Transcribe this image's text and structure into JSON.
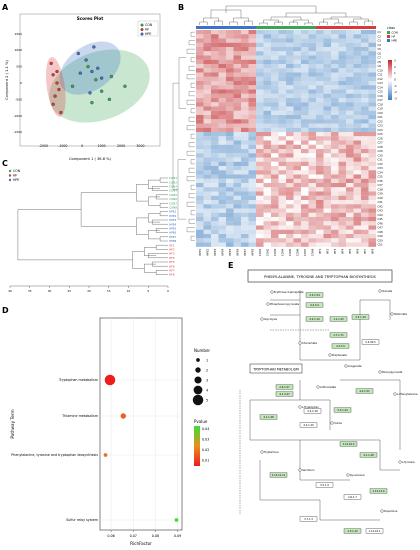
{
  "panels": {
    "a": {
      "letter": "A",
      "title": "Scores Plot",
      "xlabel": "Component 1 ( 36.8 %)",
      "ylabel": "Component 2 ( 1.1 %)",
      "legend": [
        "CON",
        "HF",
        "HPE"
      ],
      "colors": {
        "CON": "#3aa655",
        "HF": "#d83a3a",
        "HPE": "#3d73c6"
      },
      "xticks": [
        "-2000",
        "-1000",
        "0",
        "1000",
        "2000",
        "3000"
      ],
      "yticks": [
        "1500",
        "1000",
        "500",
        "0",
        "-500",
        "-1000",
        "-1500"
      ]
    },
    "b": {
      "letter": "B",
      "legend_title": "class",
      "legend": [
        "CON",
        "HF",
        "HPE"
      ],
      "scale_ticks": [
        "3",
        "2",
        "1",
        "0",
        "-1",
        "-2",
        "-3"
      ],
      "row_labels": [
        "C1",
        "C2",
        "C3",
        "C4",
        "C5",
        "C6",
        "C7",
        "C8",
        "C9",
        "C10",
        "C11",
        "C12",
        "C13",
        "C14",
        "C15",
        "C16",
        "C17",
        "C18",
        "C19",
        "C20",
        "C21",
        "C22",
        "C23",
        "C24",
        "C25",
        "C26",
        "C27",
        "C28",
        "C29",
        "C30",
        "C31",
        "C32",
        "C33",
        "C34",
        "C35",
        "C36",
        "C37",
        "C38",
        "C39",
        "C40",
        "C41",
        "C42",
        "C43",
        "C44",
        "C45",
        "C46",
        "C47",
        "C48",
        "C49",
        "C50",
        "C51"
      ],
      "col_labels": [
        "HPE1",
        "HPE2",
        "HPE3",
        "HPE4",
        "HPE5",
        "HPE6",
        "HPE7",
        "HPE8",
        "CON1",
        "CON2",
        "CON3",
        "CON4",
        "CON5",
        "CON6",
        "CON7",
        "CON8",
        "HF1",
        "HF2",
        "HF3",
        "HF4",
        "HF5",
        "HF6",
        "HF7",
        "HF8"
      ]
    },
    "c": {
      "letter": "C",
      "legend": [
        "CON",
        "HF",
        "HPE"
      ],
      "leaves_con": [
        "CON1",
        "CON2",
        "CON3",
        "CON4",
        "CON5",
        "CON6",
        "CON7",
        "CON8"
      ],
      "leaves_hpe": [
        "HPE1",
        "HPE2",
        "HPE3",
        "HPE4",
        "HPE5",
        "HPE6",
        "HPE7",
        "HPE8"
      ],
      "leaves_hf": [
        "HF1",
        "HF2",
        "HF3",
        "HF4",
        "HF5",
        "HF6",
        "HF7",
        "HF8"
      ],
      "axis_ticks": [
        "40",
        "35",
        "30",
        "25",
        "20",
        "15",
        "10",
        "5",
        "0"
      ]
    },
    "d": {
      "letter": "D",
      "xlabel": "RichFactor",
      "ylabel": "Pathway Term",
      "size_title": "Number",
      "size_legend": [
        "1",
        "2",
        "3",
        "4",
        "5"
      ],
      "color_title": "Pvalue",
      "color_ticks": [
        "0.04",
        "0.03",
        "0.02",
        "0.01"
      ]
    },
    "e": {
      "letter": "E",
      "map_title": "PHENYLALANINE, TYROSINE AND TRYPTOPHAN BIOSYNTHESIS",
      "sub_title": "TRYPTOPHAN METABOLISM",
      "nodes": [
        "Erythrose 4-phosphate",
        "Phosphoenol-pyruvate",
        "Glycolysis",
        "Quinate",
        "Prephenate",
        "Arogenate",
        "Chorismate",
        "Phenylpyruvate",
        "Anthranilate",
        "L-Tryptophan",
        "L-Phenylalanine",
        "L-Tyrosine",
        "Tryptamine",
        "Serotonin",
        "Indole",
        "Kynurenine",
        "Shikimate",
        "Dopamine"
      ],
      "ec": [
        "2.5.1.54",
        "4.2.3.4",
        "4.2.1.10",
        "1.1.1.25",
        "2.7.1.71",
        "2.5.1.19",
        "4.2.3.5",
        "5.4.99.5",
        "4.2.1.51",
        "2.6.1.57",
        "4.1.3.27",
        "2.4.2.18",
        "5.3.1.24",
        "4.1.1.48",
        "4.2.1.20",
        "1.14.16.4",
        "4.1.1.28",
        "1.13.11.11",
        "3.5.1.9",
        "2.6.1.7",
        "1.14.13.9",
        "3.7.1.3",
        "1.3.1.12",
        "1.14.16.1"
      ]
    }
  },
  "chart_data": [
    {
      "type": "scatter",
      "panel": "A",
      "title": "Scores Plot",
      "xlabel": "Component 1 ( 36.8 %)",
      "ylabel": "Component 2 ( 1.1 %)",
      "xlim": [
        -3000,
        3800
      ],
      "ylim": [
        -1800,
        1800
      ],
      "legend_placement": "top-right",
      "series": [
        {
          "name": "CON",
          "color": "#3aa655",
          "x": [
            -500,
            300,
            700,
            1000,
            1400,
            2200,
            500,
            1500
          ],
          "y": [
            -100,
            500,
            100,
            -250,
            -500,
            -100,
            -600,
            200
          ]
        },
        {
          "name": "HF",
          "color": "#d83a3a",
          "x": [
            -1600,
            -1500,
            -1300,
            -1200,
            -1400,
            -1500,
            -1100,
            -1300
          ],
          "y": [
            600,
            250,
            0,
            -200,
            -400,
            -650,
            -900,
            350
          ]
        },
        {
          "name": "HPE",
          "color": "#3d73c6",
          "x": [
            -200,
            200,
            500,
            800,
            1000,
            400,
            -100,
            600
          ],
          "y": [
            900,
            700,
            350,
            450,
            150,
            -300,
            300,
            1100
          ]
        }
      ]
    },
    {
      "type": "scatter",
      "panel": "D",
      "xlabel": "RichFactor",
      "ylabel": "Pathway Term",
      "xlim": [
        0.055,
        0.092
      ],
      "xticks": [
        0.06,
        0.07,
        0.08,
        0.09
      ],
      "color_scale": "Pvalue",
      "size_scale": "Number",
      "points": [
        {
          "pathway": "Tryptophan metabolism",
          "richfactor": 0.0595,
          "number": 5,
          "pvalue": 0.003,
          "color": "#ee1c1c"
        },
        {
          "pathway": "Thiamine metabolism",
          "richfactor": 0.0655,
          "number": 2,
          "pvalue": 0.018,
          "color": "#e8621f"
        },
        {
          "pathway": "Phenylalanine, tyrosine and tryptophan biosynthesis",
          "richfactor": 0.0575,
          "number": 1,
          "pvalue": 0.024,
          "color": "#e8721f"
        },
        {
          "pathway": "Sulfur relay system",
          "richfactor": 0.0895,
          "number": 1,
          "pvalue": 0.044,
          "color": "#3ee030"
        }
      ]
    }
  ]
}
